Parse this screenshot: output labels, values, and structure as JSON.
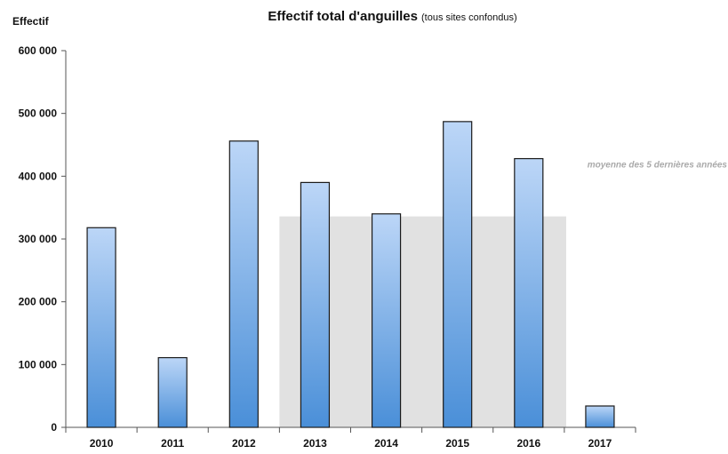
{
  "chart_data": {
    "type": "bar",
    "title": "Effectif total d'anguilles",
    "subtitle": "(tous sites confondus)",
    "ylabel": "Effectif",
    "xlabel": "",
    "categories": [
      "2010",
      "2011",
      "2012",
      "2013",
      "2014",
      "2015",
      "2016",
      "2017"
    ],
    "values": [
      318000,
      111000,
      456000,
      390000,
      340000,
      487000,
      428000,
      34000
    ],
    "ylim": [
      0,
      600000
    ],
    "yticks": [
      0,
      100000,
      200000,
      300000,
      400000,
      500000,
      600000
    ],
    "ytick_labels": [
      "0",
      "100 000",
      "200 000",
      "300 000",
      "400 000",
      "500 000",
      "600 000"
    ],
    "grid": false,
    "legend": "none",
    "bar_color_top": "#bcd6f7",
    "bar_color_bottom": "#4a8fd8",
    "bar_edge_color": "#1a1a1a",
    "annotation": {
      "label": "moyenne des 5 dernières années",
      "value": 336000,
      "from_category": "2013",
      "to_category": "2017",
      "color": "#e1e1e1",
      "text_color": "#a9a9a9"
    }
  }
}
